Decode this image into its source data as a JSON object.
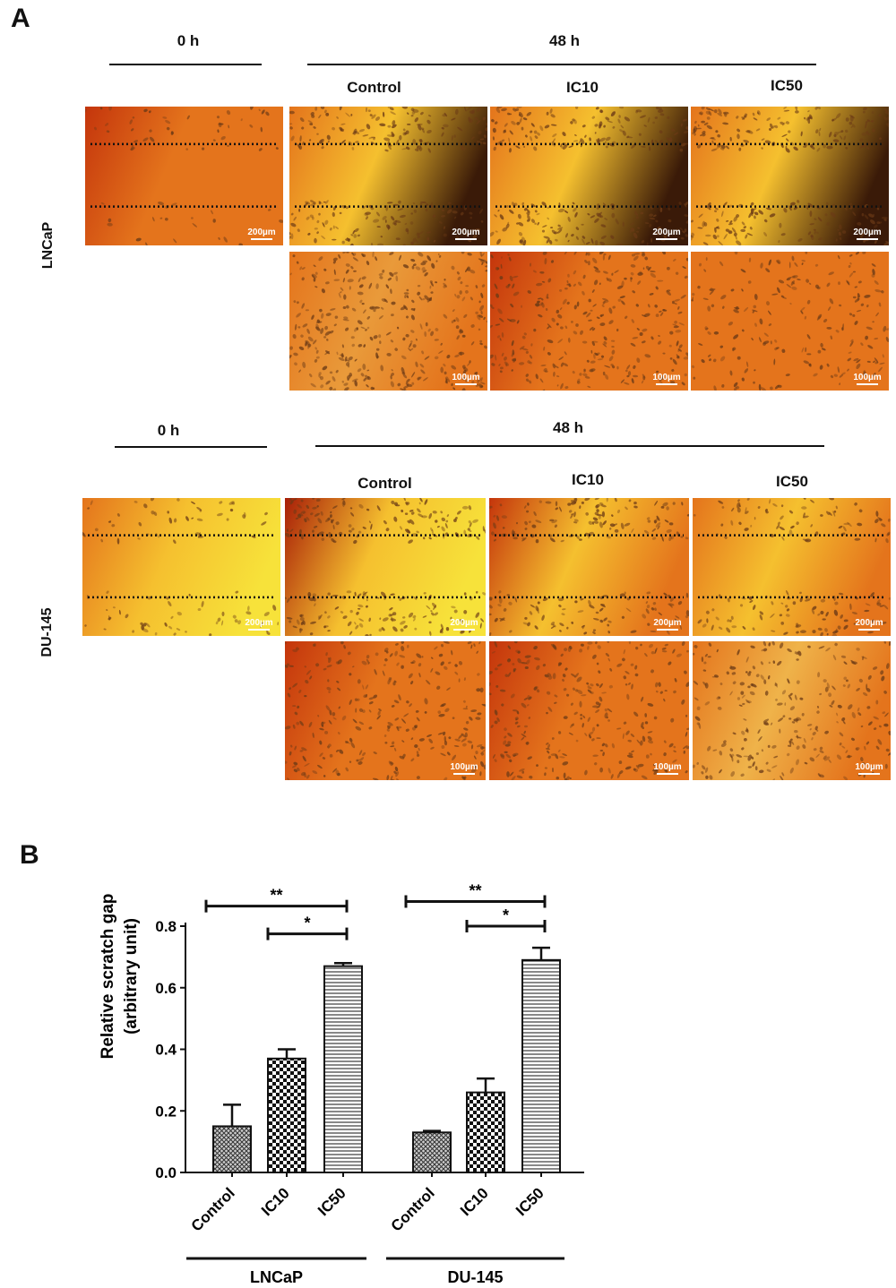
{
  "panel_labels": {
    "a": "A",
    "b": "B"
  },
  "top_block": {
    "cell_line": "LNCaP",
    "time_0": "0 h",
    "time_48": "48 h",
    "conditions": [
      "Control",
      "IC10",
      "IC50"
    ],
    "scale_low": "200µm",
    "scale_high": "100µm"
  },
  "bottom_block": {
    "cell_line": "DU-145",
    "time_0": "0 h",
    "time_48": "48 h",
    "conditions": [
      "Control",
      "IC10",
      "IC50"
    ],
    "scale_low": "200µm",
    "scale_high": "100µm"
  },
  "colors": {
    "micro_dark": "#c4350c",
    "micro_mid": "#e4741c",
    "micro_light": "#f5c02f",
    "micro_yellow": "#f7e23a",
    "cells": "#6b3a16"
  },
  "chart_data": {
    "type": "bar",
    "ylabel_line1": "Relative scratch gap",
    "ylabel_line2": "(arbitrary unit)",
    "ylim": [
      0,
      0.8
    ],
    "yticks": [
      "0.0",
      "0.2",
      "0.4",
      "0.6",
      "0.8"
    ],
    "groups": [
      {
        "name": "LNCaP",
        "categories": [
          "Control",
          "IC10",
          "IC50"
        ],
        "values": [
          0.15,
          0.37,
          0.67
        ],
        "errors": [
          0.07,
          0.03,
          0.01
        ],
        "brackets": [
          {
            "from": "Control",
            "to": "IC50",
            "label": "**",
            "y": 0.865
          },
          {
            "from": "IC10",
            "to": "IC50",
            "label": "*",
            "y": 0.775
          }
        ]
      },
      {
        "name": "DU-145",
        "categories": [
          "Control",
          "IC10",
          "IC50"
        ],
        "values": [
          0.13,
          0.26,
          0.69
        ],
        "errors": [
          0.005,
          0.045,
          0.04
        ],
        "brackets": [
          {
            "from": "Control",
            "to": "IC50",
            "label": "**",
            "y": 0.88
          },
          {
            "from": "IC10",
            "to": "IC50",
            "label": "*",
            "y": 0.8
          }
        ]
      }
    ],
    "patterns": [
      "crosshatch",
      "checker",
      "horizontal-lines"
    ]
  }
}
